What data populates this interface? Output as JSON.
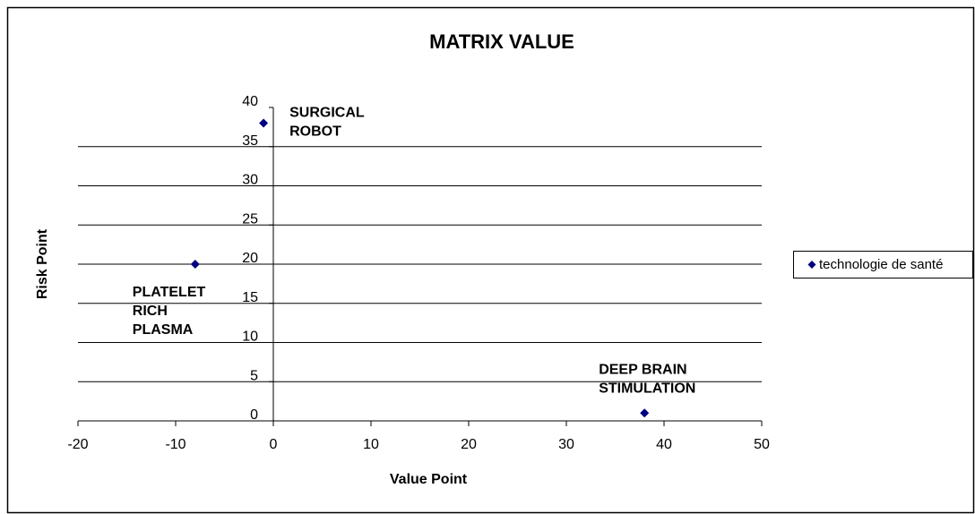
{
  "chart_data": {
    "type": "scatter",
    "title": "MATRIX VALUE",
    "x_label": "Value Point",
    "y_label": "Risk Point",
    "series": [
      {
        "name": "technologie de santé",
        "color": "#000080",
        "x": [
          -1,
          -8,
          38
        ],
        "values": [
          38,
          20,
          1
        ]
      }
    ],
    "annotations": [
      [
        "SURGICAL",
        "ROBOT"
      ],
      [
        "PLATELET",
        "RICH",
        "PLASMA"
      ],
      [
        "DEEP BRAIN",
        "STIMULATION"
      ]
    ],
    "xlim": [
      -20,
      50
    ],
    "xticks": [
      -20,
      -10,
      0,
      10,
      20,
      30,
      40,
      50
    ],
    "ylim": [
      0,
      40
    ],
    "yticks": [
      0,
      5,
      10,
      15,
      20,
      25,
      30,
      35,
      40
    ],
    "grid": true,
    "legend": "right"
  }
}
